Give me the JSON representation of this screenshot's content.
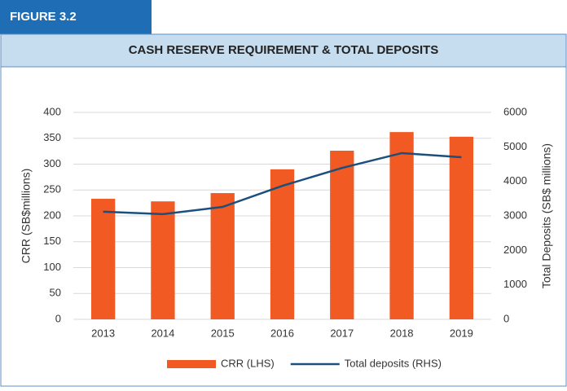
{
  "figure_label": "FIGURE 3.2",
  "chart_data": {
    "type": "bar_line",
    "title": "CASH RESERVE REQUIREMENT & TOTAL DEPOSITS",
    "categories": [
      "2013",
      "2014",
      "2015",
      "2016",
      "2017",
      "2018",
      "2019"
    ],
    "series": [
      {
        "name": "CRR (LHS)",
        "type": "bar",
        "color": "#f15a22",
        "values": [
          233,
          228,
          244,
          290,
          326,
          362,
          353
        ]
      },
      {
        "name": "Total deposits (RHS)",
        "type": "line",
        "axis": "y2",
        "color": "#1b4f7d",
        "values": [
          3120,
          3050,
          3260,
          3870,
          4390,
          4820,
          4700
        ]
      }
    ],
    "ylabel": "CRR (SB$millions)",
    "y2label": "Total Deposits (SB$ millions)",
    "ylim": [
      0,
      400
    ],
    "yticks": [
      0,
      50,
      100,
      150,
      200,
      250,
      300,
      350,
      400
    ],
    "y2lim": [
      0,
      6000
    ],
    "y2ticks": [
      0,
      1000,
      2000,
      3000,
      4000,
      5000,
      6000
    ],
    "grid": true,
    "legend": "bottom"
  }
}
